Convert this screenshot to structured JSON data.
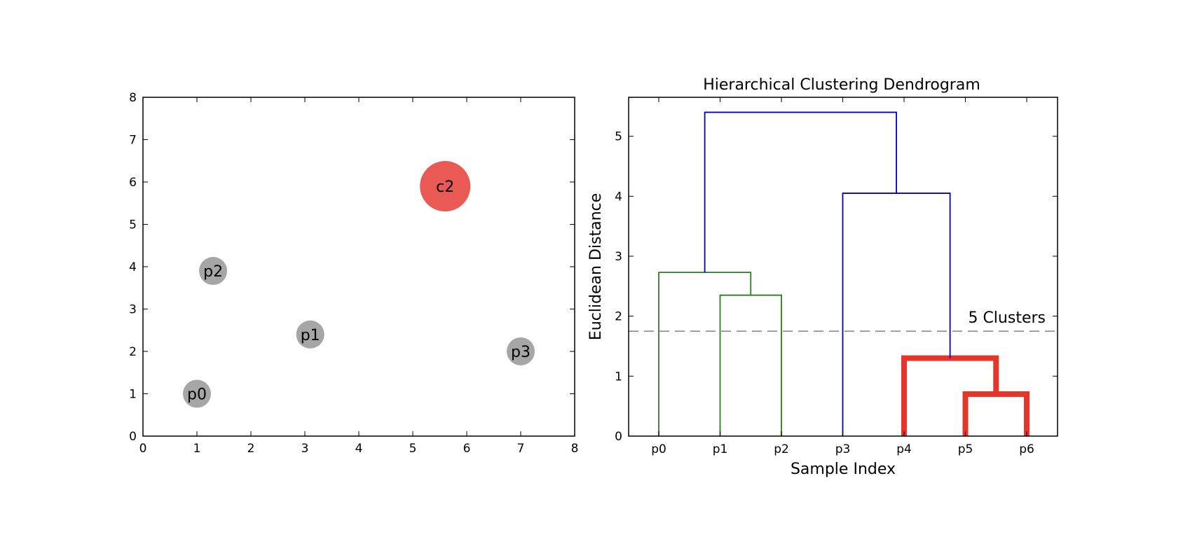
{
  "chart_data": [
    {
      "type": "scatter",
      "title": "",
      "xlabel": "",
      "ylabel": "",
      "xlim": [
        0,
        8
      ],
      "ylim": [
        0,
        8
      ],
      "xticks": [
        0,
        1,
        2,
        3,
        4,
        5,
        6,
        7,
        8
      ],
      "yticks": [
        0,
        1,
        2,
        3,
        4,
        5,
        6,
        7,
        8
      ],
      "grid": false,
      "points": [
        {
          "label": "p0",
          "x": 1.0,
          "y": 1.0,
          "size": "small",
          "color": "#a6a6a6"
        },
        {
          "label": "p1",
          "x": 3.1,
          "y": 2.4,
          "size": "small",
          "color": "#a6a6a6"
        },
        {
          "label": "p2",
          "x": 1.3,
          "y": 3.9,
          "size": "small",
          "color": "#a6a6a6"
        },
        {
          "label": "p3",
          "x": 7.0,
          "y": 2.0,
          "size": "small",
          "color": "#a6a6a6"
        },
        {
          "label": "c2",
          "x": 5.6,
          "y": 5.9,
          "size": "large",
          "color": "#ea5a55"
        }
      ]
    },
    {
      "type": "dendrogram",
      "title": "Hierarchical Clustering Dendrogram",
      "xlabel": "Sample Index",
      "ylabel": "Euclidean Distance",
      "ylim": [
        0,
        5.65
      ],
      "yticks": [
        0,
        1,
        2,
        3,
        4,
        5
      ],
      "categories": [
        "p0",
        "p1",
        "p2",
        "p3",
        "p4",
        "p5",
        "p6"
      ],
      "grid": false,
      "merges": [
        {
          "left": 5,
          "right": 6,
          "height": 0.7,
          "color": "#e8352a",
          "bold": true
        },
        {
          "left": 4,
          "right": 5.5,
          "height": 1.3,
          "color": "#e8352a",
          "bold": true
        },
        {
          "left": 1,
          "right": 2,
          "height": 2.35,
          "color": "#2e7d1e",
          "bold": false
        },
        {
          "left": 0,
          "right": 1.5,
          "height": 2.73,
          "color": "#2e7d1e",
          "bold": false
        },
        {
          "left": 3,
          "right": 4.75,
          "height": 4.05,
          "color": "#0000cc",
          "bold": false
        },
        {
          "left": 0.75,
          "right": 3.875,
          "height": 5.4,
          "color": "#0000cc",
          "bold": false
        }
      ],
      "cutoff": {
        "height": 1.75,
        "label": "5 Clusters",
        "color": "#808080"
      }
    }
  ]
}
